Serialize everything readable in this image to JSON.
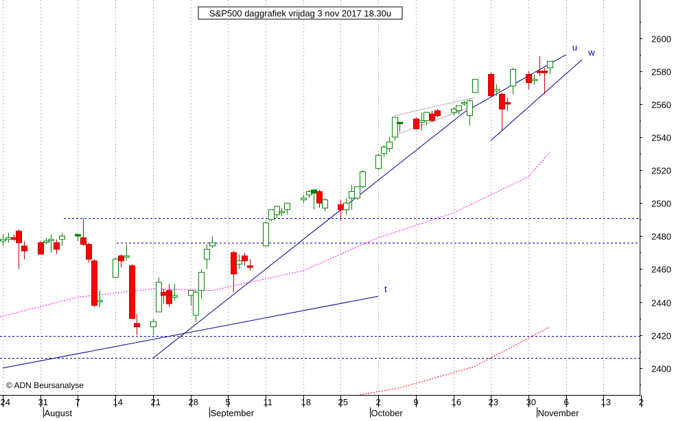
{
  "chart_data": {
    "type": "candlestick",
    "title": "S&P500 daggrafiek vrijdag 3 nov 2017 18.30u",
    "watermark": "© ADN Beursanalyse",
    "y_axis": {
      "ticks": [
        2400,
        2420,
        2440,
        2460,
        2480,
        2500,
        2520,
        2540,
        2560,
        2580,
        2600
      ],
      "ylim": [
        2383.7,
        2623.1
      ],
      "position": "right"
    },
    "x_axis": {
      "day_ticks": [
        "24",
        "31",
        "7",
        "14",
        "21",
        "28",
        "5",
        "11",
        "18",
        "25",
        "2",
        "9",
        "16",
        "23",
        "30",
        "6",
        "13",
        "2"
      ],
      "months": [
        "August",
        "September",
        "October",
        "November"
      ]
    },
    "grid": {
      "vertical": true,
      "horizontal": false,
      "style": "dotted"
    },
    "colors": {
      "up_fill": "#ffffff",
      "up_stroke": "#008000",
      "down_fill": "#ff0000",
      "down_stroke": "#c00000",
      "solid_up_fill": "#008000",
      "trendline": "#00008b",
      "support_dashed": "#0000aa",
      "ma_short": "#ff00ff",
      "ma_long": "#ff0000",
      "wedge": "#b0b0b0"
    },
    "series": [
      {
        "date": "Jul 24",
        "open": 2477,
        "high": 2481,
        "low": 2474,
        "close": 2478
      },
      {
        "date": "Jul 25",
        "open": 2478,
        "high": 2482,
        "low": 2476,
        "close": 2479
      },
      {
        "date": "Jul 26",
        "open": 2479,
        "high": 2481,
        "low": 2477,
        "close": 2478
      },
      {
        "date": "Jul 27",
        "open": 2483,
        "high": 2484,
        "low": 2460,
        "close": 2476
      },
      {
        "date": "Jul 28",
        "open": 2474,
        "high": 2477,
        "low": 2466,
        "close": 2471
      },
      {
        "date": "Jul 31",
        "open": 2476,
        "high": 2477,
        "low": 2469,
        "close": 2469
      },
      {
        "date": "Aug 1",
        "open": 2477,
        "high": 2479,
        "low": 2475,
        "close": 2477
      },
      {
        "date": "Aug 2",
        "open": 2478,
        "high": 2481,
        "low": 2470,
        "close": 2478
      },
      {
        "date": "Aug 3",
        "open": 2476,
        "high": 2478,
        "low": 2469,
        "close": 2472
      },
      {
        "date": "Aug 4",
        "open": 2478,
        "high": 2482,
        "low": 2474,
        "close": 2480
      },
      {
        "date": "Aug 7",
        "open": 2480,
        "high": 2481,
        "low": 2477,
        "close": 2481
      },
      {
        "date": "Aug 8",
        "open": 2479,
        "high": 2491,
        "low": 2474,
        "close": 2475
      },
      {
        "date": "Aug 9",
        "open": 2475,
        "high": 2476,
        "low": 2464,
        "close": 2466
      },
      {
        "date": "Aug 10",
        "open": 2465,
        "high": 2466,
        "low": 2437,
        "close": 2438
      },
      {
        "date": "Aug 11",
        "open": 2441,
        "high": 2447,
        "low": 2437,
        "close": 2441
      },
      {
        "date": "Aug 14",
        "open": 2455,
        "high": 2467,
        "low": 2455,
        "close": 2466
      },
      {
        "date": "Aug 15",
        "open": 2468,
        "high": 2469,
        "low": 2461,
        "close": 2465
      },
      {
        "date": "Aug 16",
        "open": 2468,
        "high": 2475,
        "low": 2465,
        "close": 2468
      },
      {
        "date": "Aug 17",
        "open": 2462,
        "high": 2463,
        "low": 2430,
        "close": 2430
      },
      {
        "date": "Aug 18",
        "open": 2427,
        "high": 2433,
        "low": 2420,
        "close": 2425
      },
      {
        "date": "Aug 21",
        "open": 2425,
        "high": 2430,
        "low": 2420,
        "close": 2428
      },
      {
        "date": "Aug 22",
        "open": 2434,
        "high": 2455,
        "low": 2434,
        "close": 2452
      },
      {
        "date": "Aug 23",
        "open": 2446,
        "high": 2448,
        "low": 2439,
        "close": 2444
      },
      {
        "date": "Aug 24",
        "open": 2447,
        "high": 2451,
        "low": 2437,
        "close": 2439
      },
      {
        "date": "Aug 25",
        "open": 2443,
        "high": 2451,
        "low": 2441,
        "close": 2444
      },
      {
        "date": "Aug 28",
        "open": 2444,
        "high": 2447,
        "low": 2438,
        "close": 2447
      },
      {
        "date": "Aug 29",
        "open": 2432,
        "high": 2447,
        "low": 2428,
        "close": 2446
      },
      {
        "date": "Aug 30",
        "open": 2447,
        "high": 2460,
        "low": 2442,
        "close": 2458
      },
      {
        "date": "Aug 31",
        "open": 2466,
        "high": 2475,
        "low": 2460,
        "close": 2472
      },
      {
        "date": "Sep 1",
        "open": 2474,
        "high": 2480,
        "low": 2473,
        "close": 2476
      },
      {
        "date": "Sep 5",
        "open": 2470,
        "high": 2471,
        "low": 2446,
        "close": 2457
      },
      {
        "date": "Sep 6",
        "open": 2463,
        "high": 2469,
        "low": 2460,
        "close": 2465
      },
      {
        "date": "Sep 7",
        "open": 2468,
        "high": 2470,
        "low": 2462,
        "close": 2465
      },
      {
        "date": "Sep 8",
        "open": 2462,
        "high": 2466,
        "low": 2459,
        "close": 2461
      },
      {
        "date": "Sep 11",
        "open": 2474,
        "high": 2489,
        "low": 2474,
        "close": 2488
      },
      {
        "date": "Sep 12",
        "open": 2490,
        "high": 2496,
        "low": 2489,
        "close": 2496
      },
      {
        "date": "Sep 13",
        "open": 2493,
        "high": 2498,
        "low": 2491,
        "close": 2498
      },
      {
        "date": "Sep 14",
        "open": 2495,
        "high": 2497,
        "low": 2492,
        "close": 2495
      },
      {
        "date": "Sep 15",
        "open": 2496,
        "high": 2500,
        "low": 2493,
        "close": 2500
      },
      {
        "date": "Sep 18",
        "open": 2502,
        "high": 2505,
        "low": 2500,
        "close": 2503
      },
      {
        "date": "Sep 19",
        "open": 2505,
        "high": 2508,
        "low": 2503,
        "close": 2507
      },
      {
        "date": "Sep 20",
        "open": 2506,
        "high": 2508,
        "low": 2496,
        "close": 2508
      },
      {
        "date": "Sep 21",
        "open": 2507,
        "high": 2508,
        "low": 2497,
        "close": 2500
      },
      {
        "date": "Sep 22",
        "open": 2497,
        "high": 2503,
        "low": 2495,
        "close": 2502
      },
      {
        "date": "Sep 25",
        "open": 2499,
        "high": 2502,
        "low": 2489,
        "close": 2496
      },
      {
        "date": "Sep 26",
        "open": 2496,
        "high": 2503,
        "low": 2493,
        "close": 2500
      },
      {
        "date": "Sep 27",
        "open": 2503,
        "high": 2511,
        "low": 2496,
        "close": 2507
      },
      {
        "date": "Sep 28",
        "open": 2503,
        "high": 2510,
        "low": 2502,
        "close": 2510
      },
      {
        "date": "Sep 29",
        "open": 2510,
        "high": 2520,
        "low": 2509,
        "close": 2519
      },
      {
        "date": "Oct 2",
        "open": 2521,
        "high": 2530,
        "low": 2520,
        "close": 2529
      },
      {
        "date": "Oct 3",
        "open": 2530,
        "high": 2535,
        "low": 2528,
        "close": 2534
      },
      {
        "date": "Oct 4",
        "open": 2533,
        "high": 2540,
        "low": 2531,
        "close": 2537
      },
      {
        "date": "Oct 5",
        "open": 2540,
        "high": 2552,
        "low": 2538,
        "close": 2552
      },
      {
        "date": "Oct 6",
        "open": 2548,
        "high": 2549,
        "low": 2543,
        "close": 2549
      },
      {
        "date": "Oct 9",
        "open": 2551,
        "high": 2552,
        "low": 2545,
        "close": 2545
      },
      {
        "date": "Oct 10",
        "open": 2549,
        "high": 2555,
        "low": 2544,
        "close": 2550
      },
      {
        "date": "Oct 11",
        "open": 2550,
        "high": 2555,
        "low": 2547,
        "close": 2555
      },
      {
        "date": "Oct 12",
        "open": 2554,
        "high": 2556,
        "low": 2549,
        "close": 2550
      },
      {
        "date": "Oct 13",
        "open": 2556,
        "high": 2557,
        "low": 2552,
        "close": 2553
      },
      {
        "date": "Oct 16",
        "open": 2555,
        "high": 2558,
        "low": 2553,
        "close": 2557
      },
      {
        "date": "Oct 17",
        "open": 2556,
        "high": 2559,
        "low": 2554,
        "close": 2559
      },
      {
        "date": "Oct 18",
        "open": 2561,
        "high": 2562,
        "low": 2559,
        "close": 2561
      },
      {
        "date": "Oct 19",
        "open": 2553,
        "high": 2563,
        "low": 2547,
        "close": 2562
      },
      {
        "date": "Oct 20",
        "open": 2567,
        "high": 2575,
        "low": 2567,
        "close": 2575
      },
      {
        "date": "Oct 23",
        "open": 2578,
        "high": 2579,
        "low": 2564,
        "close": 2565
      },
      {
        "date": "Oct 24",
        "open": 2568,
        "high": 2572,
        "low": 2565,
        "close": 2569
      },
      {
        "date": "Oct 25",
        "open": 2566,
        "high": 2567,
        "low": 2544,
        "close": 2557
      },
      {
        "date": "Oct 26",
        "open": 2561,
        "high": 2564,
        "low": 2556,
        "close": 2560
      },
      {
        "date": "Oct 27",
        "open": 2571,
        "high": 2582,
        "low": 2566,
        "close": 2581
      },
      {
        "date": "Oct 30",
        "open": 2578,
        "high": 2580,
        "low": 2569,
        "close": 2573
      },
      {
        "date": "Oct 31",
        "open": 2575,
        "high": 2578,
        "low": 2572,
        "close": 2575
      },
      {
        "date": "Nov 1",
        "open": 2580,
        "high": 2589,
        "low": 2577,
        "close": 2579
      },
      {
        "date": "Nov 2",
        "open": 2580,
        "high": 2582,
        "low": 2566,
        "close": 2579
      },
      {
        "date": "Nov 3",
        "open": 2582,
        "high": 2586,
        "low": 2578,
        "close": 2586
      }
    ],
    "horizontal_lines": [
      {
        "value": 2491,
        "style": "dashed"
      },
      {
        "value": 2476,
        "style": "dashed"
      },
      {
        "value": 2419.5,
        "style": "dashed"
      },
      {
        "value": 2406,
        "style": "dashed"
      }
    ],
    "trendlines": [
      {
        "label": "t",
        "points": [
          [
            "Jul 24",
            2400
          ],
          [
            "Oct 2",
            2443.5
          ]
        ]
      },
      {
        "label": "",
        "points": [
          [
            "Aug 21",
            2406
          ],
          [
            "Oct 18",
            2555
          ]
        ]
      },
      {
        "label": "u",
        "points": [
          [
            "Oct 18",
            2555
          ],
          [
            "Nov 6",
            2590
          ]
        ]
      },
      {
        "label": "w",
        "points": [
          [
            "Oct 23",
            2538
          ],
          [
            "Nov 9",
            2587
          ]
        ]
      }
    ],
    "wedge": {
      "points_upper": [
        [
          "Oct 5",
          2553
        ],
        [
          "Oct 20",
          2564
        ]
      ],
      "points_lower": [
        [
          "Oct 5",
          2541
        ],
        [
          "Oct 20",
          2559
        ]
      ]
    },
    "moving_averages": [
      {
        "name": "",
        "color": "#ff00ff",
        "points": [
          [
            "Jul 21",
            2429
          ],
          [
            "Aug 7",
            2443
          ],
          [
            "Aug 21",
            2448
          ],
          [
            "Sep 1",
            2447
          ],
          [
            "Sep 18",
            2459
          ],
          [
            "Oct 2",
            2479
          ],
          [
            "Oct 16",
            2494
          ],
          [
            "Oct 30",
            2516
          ],
          [
            "Nov 3",
            2531
          ]
        ]
      },
      {
        "name": "",
        "color": "#ff0000",
        "points": [
          [
            "Sep 22",
            2380
          ],
          [
            "Oct 6",
            2388
          ],
          [
            "Oct 20",
            2401
          ],
          [
            "Nov 3",
            2425
          ]
        ]
      }
    ]
  }
}
